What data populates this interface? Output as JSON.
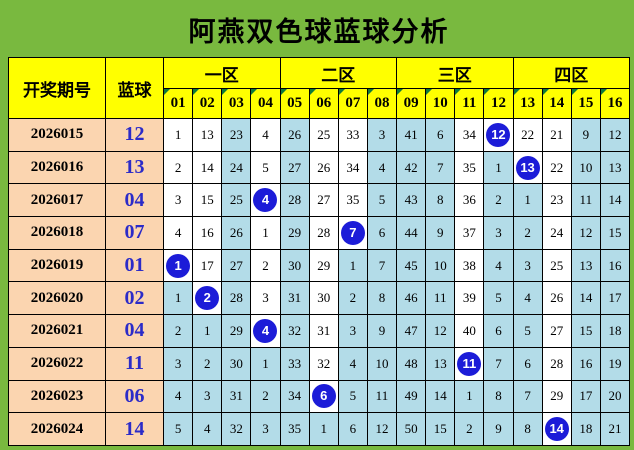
{
  "title": "阿燕双色球蓝球分析",
  "colors": {
    "frame_green": "#79B93F",
    "header_yellow": "#FFFF00",
    "period_peach": "#FBD5B0",
    "streak_light_blue": "#B3DCE8",
    "ball_blue": "#1C1CD8",
    "blue_text": "#2B2BC8",
    "corner_marker_green": "#0E7A3C"
  },
  "table": {
    "header": {
      "period": "开奖期号",
      "blue": "蓝球",
      "zones": [
        "一区",
        "二区",
        "三区",
        "四区"
      ],
      "numbers": [
        "01",
        "02",
        "03",
        "04",
        "05",
        "06",
        "07",
        "08",
        "09",
        "10",
        "11",
        "12",
        "13",
        "14",
        "15",
        "16"
      ]
    },
    "rows": [
      {
        "period": "2026015",
        "blue": "12",
        "cells": [
          {
            "v": "1",
            "s": "w"
          },
          {
            "v": "13",
            "s": "w"
          },
          {
            "v": "23",
            "s": "b"
          },
          {
            "v": "4",
            "s": "w"
          },
          {
            "v": "26",
            "s": "b"
          },
          {
            "v": "25",
            "s": "w"
          },
          {
            "v": "33",
            "s": "w"
          },
          {
            "v": "3",
            "s": "b"
          },
          {
            "v": "41",
            "s": "b"
          },
          {
            "v": "6",
            "s": "b"
          },
          {
            "v": "34",
            "s": "w"
          },
          {
            "v": "12",
            "s": "ball"
          },
          {
            "v": "22",
            "s": "w"
          },
          {
            "v": "21",
            "s": "w"
          },
          {
            "v": "9",
            "s": "b"
          },
          {
            "v": "12",
            "s": "b"
          }
        ]
      },
      {
        "period": "2026016",
        "blue": "13",
        "cells": [
          {
            "v": "2",
            "s": "w"
          },
          {
            "v": "14",
            "s": "w"
          },
          {
            "v": "24",
            "s": "b"
          },
          {
            "v": "5",
            "s": "w"
          },
          {
            "v": "27",
            "s": "b"
          },
          {
            "v": "26",
            "s": "w"
          },
          {
            "v": "34",
            "s": "w"
          },
          {
            "v": "4",
            "s": "b"
          },
          {
            "v": "42",
            "s": "b"
          },
          {
            "v": "7",
            "s": "b"
          },
          {
            "v": "35",
            "s": "w"
          },
          {
            "v": "1",
            "s": "b"
          },
          {
            "v": "13",
            "s": "ball"
          },
          {
            "v": "22",
            "s": "w"
          },
          {
            "v": "10",
            "s": "b"
          },
          {
            "v": "13",
            "s": "b"
          }
        ]
      },
      {
        "period": "2026017",
        "blue": "04",
        "cells": [
          {
            "v": "3",
            "s": "w"
          },
          {
            "v": "15",
            "s": "w"
          },
          {
            "v": "25",
            "s": "b"
          },
          {
            "v": "4",
            "s": "ball"
          },
          {
            "v": "28",
            "s": "b"
          },
          {
            "v": "27",
            "s": "w"
          },
          {
            "v": "35",
            "s": "w"
          },
          {
            "v": "5",
            "s": "b"
          },
          {
            "v": "43",
            "s": "b"
          },
          {
            "v": "8",
            "s": "b"
          },
          {
            "v": "36",
            "s": "w"
          },
          {
            "v": "2",
            "s": "b"
          },
          {
            "v": "1",
            "s": "b"
          },
          {
            "v": "23",
            "s": "w"
          },
          {
            "v": "11",
            "s": "b"
          },
          {
            "v": "14",
            "s": "b"
          }
        ]
      },
      {
        "period": "2026018",
        "blue": "07",
        "cells": [
          {
            "v": "4",
            "s": "w"
          },
          {
            "v": "16",
            "s": "w"
          },
          {
            "v": "26",
            "s": "b"
          },
          {
            "v": "1",
            "s": "w"
          },
          {
            "v": "29",
            "s": "b"
          },
          {
            "v": "28",
            "s": "w"
          },
          {
            "v": "7",
            "s": "ball"
          },
          {
            "v": "6",
            "s": "b"
          },
          {
            "v": "44",
            "s": "b"
          },
          {
            "v": "9",
            "s": "b"
          },
          {
            "v": "37",
            "s": "w"
          },
          {
            "v": "3",
            "s": "b"
          },
          {
            "v": "2",
            "s": "b"
          },
          {
            "v": "24",
            "s": "w"
          },
          {
            "v": "12",
            "s": "b"
          },
          {
            "v": "15",
            "s": "b"
          }
        ]
      },
      {
        "period": "2026019",
        "blue": "01",
        "cells": [
          {
            "v": "1",
            "s": "ball"
          },
          {
            "v": "17",
            "s": "w"
          },
          {
            "v": "27",
            "s": "b"
          },
          {
            "v": "2",
            "s": "w"
          },
          {
            "v": "30",
            "s": "b"
          },
          {
            "v": "29",
            "s": "w"
          },
          {
            "v": "1",
            "s": "b"
          },
          {
            "v": "7",
            "s": "b"
          },
          {
            "v": "45",
            "s": "b"
          },
          {
            "v": "10",
            "s": "b"
          },
          {
            "v": "38",
            "s": "w"
          },
          {
            "v": "4",
            "s": "b"
          },
          {
            "v": "3",
            "s": "b"
          },
          {
            "v": "25",
            "s": "w"
          },
          {
            "v": "13",
            "s": "b"
          },
          {
            "v": "16",
            "s": "b"
          }
        ]
      },
      {
        "period": "2026020",
        "blue": "02",
        "cells": [
          {
            "v": "1",
            "s": "b"
          },
          {
            "v": "2",
            "s": "ball"
          },
          {
            "v": "28",
            "s": "b"
          },
          {
            "v": "3",
            "s": "w"
          },
          {
            "v": "31",
            "s": "b"
          },
          {
            "v": "30",
            "s": "w"
          },
          {
            "v": "2",
            "s": "b"
          },
          {
            "v": "8",
            "s": "b"
          },
          {
            "v": "46",
            "s": "b"
          },
          {
            "v": "11",
            "s": "b"
          },
          {
            "v": "39",
            "s": "w"
          },
          {
            "v": "5",
            "s": "b"
          },
          {
            "v": "4",
            "s": "b"
          },
          {
            "v": "26",
            "s": "w"
          },
          {
            "v": "14",
            "s": "b"
          },
          {
            "v": "17",
            "s": "b"
          }
        ]
      },
      {
        "period": "2026021",
        "blue": "04",
        "cells": [
          {
            "v": "2",
            "s": "b"
          },
          {
            "v": "1",
            "s": "b"
          },
          {
            "v": "29",
            "s": "b"
          },
          {
            "v": "4",
            "s": "ball"
          },
          {
            "v": "32",
            "s": "b"
          },
          {
            "v": "31",
            "s": "w"
          },
          {
            "v": "3",
            "s": "b"
          },
          {
            "v": "9",
            "s": "b"
          },
          {
            "v": "47",
            "s": "b"
          },
          {
            "v": "12",
            "s": "b"
          },
          {
            "v": "40",
            "s": "w"
          },
          {
            "v": "6",
            "s": "b"
          },
          {
            "v": "5",
            "s": "b"
          },
          {
            "v": "27",
            "s": "w"
          },
          {
            "v": "15",
            "s": "b"
          },
          {
            "v": "18",
            "s": "b"
          }
        ]
      },
      {
        "period": "2026022",
        "blue": "11",
        "cells": [
          {
            "v": "3",
            "s": "b"
          },
          {
            "v": "2",
            "s": "b"
          },
          {
            "v": "30",
            "s": "b"
          },
          {
            "v": "1",
            "s": "b"
          },
          {
            "v": "33",
            "s": "b"
          },
          {
            "v": "32",
            "s": "w"
          },
          {
            "v": "4",
            "s": "b"
          },
          {
            "v": "10",
            "s": "b"
          },
          {
            "v": "48",
            "s": "b"
          },
          {
            "v": "13",
            "s": "b"
          },
          {
            "v": "11",
            "s": "ball"
          },
          {
            "v": "7",
            "s": "b"
          },
          {
            "v": "6",
            "s": "b"
          },
          {
            "v": "28",
            "s": "w"
          },
          {
            "v": "16",
            "s": "b"
          },
          {
            "v": "19",
            "s": "b"
          }
        ]
      },
      {
        "period": "2026023",
        "blue": "06",
        "cells": [
          {
            "v": "4",
            "s": "b"
          },
          {
            "v": "3",
            "s": "b"
          },
          {
            "v": "31",
            "s": "b"
          },
          {
            "v": "2",
            "s": "b"
          },
          {
            "v": "34",
            "s": "b"
          },
          {
            "v": "6",
            "s": "ball"
          },
          {
            "v": "5",
            "s": "b"
          },
          {
            "v": "11",
            "s": "b"
          },
          {
            "v": "49",
            "s": "b"
          },
          {
            "v": "14",
            "s": "b"
          },
          {
            "v": "1",
            "s": "b"
          },
          {
            "v": "8",
            "s": "b"
          },
          {
            "v": "7",
            "s": "b"
          },
          {
            "v": "29",
            "s": "w"
          },
          {
            "v": "17",
            "s": "b"
          },
          {
            "v": "20",
            "s": "b"
          }
        ]
      },
      {
        "period": "2026024",
        "blue": "14",
        "cells": [
          {
            "v": "5",
            "s": "b"
          },
          {
            "v": "4",
            "s": "b"
          },
          {
            "v": "32",
            "s": "b"
          },
          {
            "v": "3",
            "s": "b"
          },
          {
            "v": "35",
            "s": "b"
          },
          {
            "v": "1",
            "s": "b"
          },
          {
            "v": "6",
            "s": "b"
          },
          {
            "v": "12",
            "s": "b"
          },
          {
            "v": "50",
            "s": "b"
          },
          {
            "v": "15",
            "s": "b"
          },
          {
            "v": "2",
            "s": "b"
          },
          {
            "v": "9",
            "s": "b"
          },
          {
            "v": "8",
            "s": "b"
          },
          {
            "v": "14",
            "s": "ball"
          },
          {
            "v": "18",
            "s": "b"
          },
          {
            "v": "21",
            "s": "b"
          }
        ]
      }
    ]
  }
}
